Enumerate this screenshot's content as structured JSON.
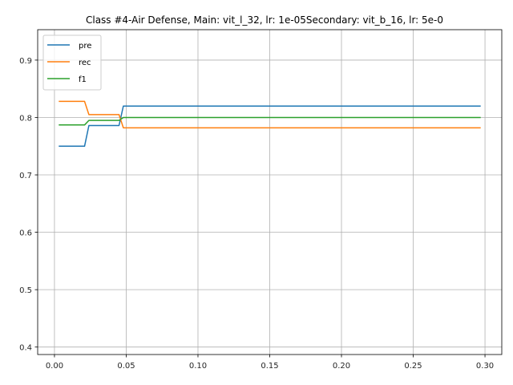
{
  "chart_data": {
    "type": "line",
    "title": "Class #4-Air Defense, Main: vit_l_32, lr: 1e-05Secondary: vit_b_16, lr: 5e-0",
    "xlabel": "",
    "ylabel": "",
    "xlim": [
      -0.0117,
      0.3117
    ],
    "ylim": [
      0.387,
      0.953
    ],
    "xticks": [
      "0.00",
      "0.05",
      "0.10",
      "0.15",
      "0.20",
      "0.25",
      "0.30"
    ],
    "xtick_values": [
      0.0,
      0.05,
      0.1,
      0.15,
      0.2,
      0.25,
      0.3
    ],
    "yticks": [
      "0.4",
      "0.5",
      "0.6",
      "0.7",
      "0.8",
      "0.9"
    ],
    "ytick_values": [
      0.4,
      0.5,
      0.6,
      0.7,
      0.8,
      0.9
    ],
    "grid": true,
    "legend_position": "top-left",
    "series": [
      {
        "name": "pre",
        "color": "#1f77b4",
        "points": [
          [
            0.003,
            0.75
          ],
          [
            0.021,
            0.75
          ],
          [
            0.024,
            0.786
          ],
          [
            0.045,
            0.786
          ],
          [
            0.048,
            0.82
          ],
          [
            0.297,
            0.82
          ]
        ]
      },
      {
        "name": "rec",
        "color": "#ff7f0e",
        "points": [
          [
            0.003,
            0.828
          ],
          [
            0.021,
            0.828
          ],
          [
            0.024,
            0.805
          ],
          [
            0.045,
            0.805
          ],
          [
            0.048,
            0.782
          ],
          [
            0.297,
            0.782
          ]
        ]
      },
      {
        "name": "f1",
        "color": "#2ca02c",
        "points": [
          [
            0.003,
            0.787
          ],
          [
            0.021,
            0.787
          ],
          [
            0.024,
            0.795
          ],
          [
            0.045,
            0.795
          ],
          [
            0.048,
            0.8
          ],
          [
            0.297,
            0.8
          ]
        ]
      }
    ]
  }
}
